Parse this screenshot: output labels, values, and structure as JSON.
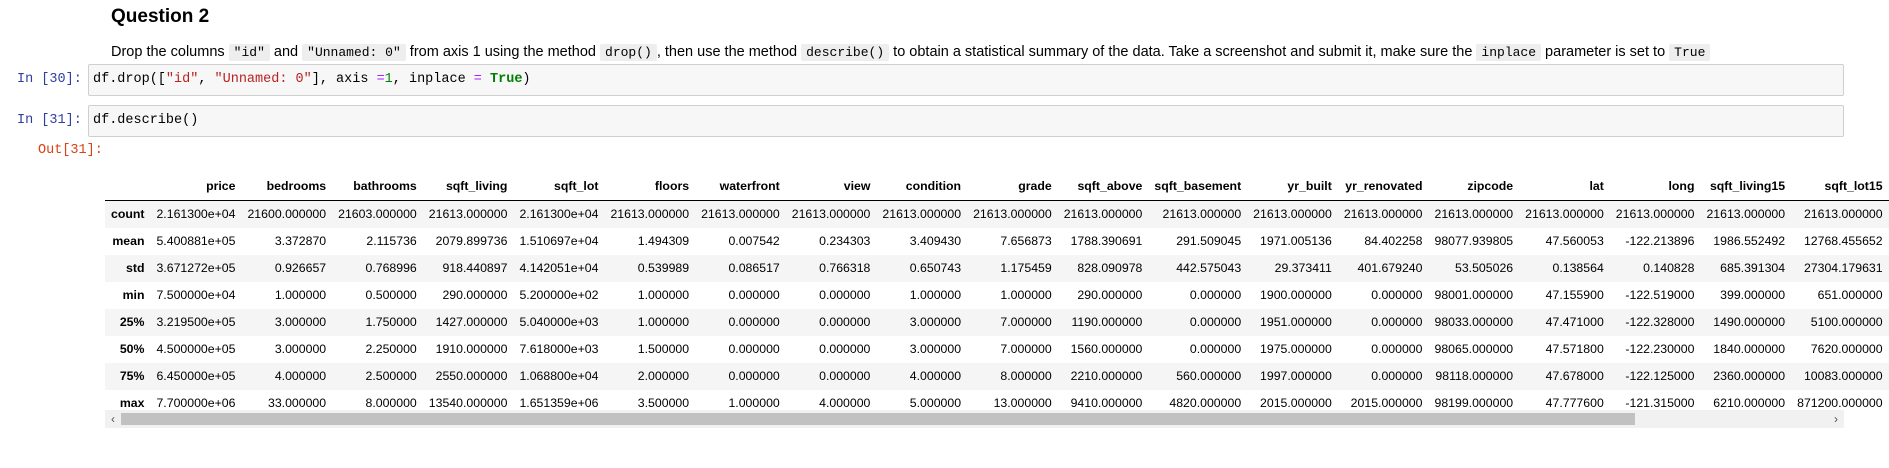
{
  "markdown": {
    "heading": "Question 2",
    "instruction": [
      {
        "t": "Drop the columns "
      },
      {
        "c": "\"id\""
      },
      {
        "t": " and "
      },
      {
        "c": "\"Unnamed: 0\""
      },
      {
        "t": " from axis 1 using the method "
      },
      {
        "c": "drop()"
      },
      {
        "t": ", then use the method "
      },
      {
        "c": "describe()"
      },
      {
        "t": " to obtain a statistical summary of the data. Take a screenshot and submit it, make sure the "
      },
      {
        "c": "inplace"
      },
      {
        "t": " parameter is set to "
      },
      {
        "c": "True"
      }
    ]
  },
  "cells": [
    {
      "prompt": "In [30]:",
      "code": [
        {
          "k": "p",
          "t": "df.drop(["
        },
        {
          "k": "s",
          "t": "\"id\""
        },
        {
          "k": "p",
          "t": ", "
        },
        {
          "k": "s",
          "t": "\"Unnamed: 0\""
        },
        {
          "k": "p",
          "t": "], axis "
        },
        {
          "k": "op",
          "t": "="
        },
        {
          "k": "n",
          "t": "1"
        },
        {
          "k": "p",
          "t": ", inplace "
        },
        {
          "k": "op",
          "t": "="
        },
        {
          "k": "p",
          "t": " "
        },
        {
          "k": "kw",
          "t": "True"
        },
        {
          "k": "p",
          "t": ")"
        }
      ]
    },
    {
      "prompt": "In [31]:",
      "code": [
        {
          "k": "p",
          "t": "df.describe()"
        }
      ]
    }
  ],
  "output": {
    "prompt": "Out[31]:",
    "columns": [
      "",
      "price",
      "bedrooms",
      "bathrooms",
      "sqft_living",
      "sqft_lot",
      "floors",
      "waterfront",
      "view",
      "condition",
      "grade",
      "sqft_above",
      "sqft_basement",
      "yr_built",
      "yr_renovated",
      "zipcode",
      "lat",
      "long",
      "sqft_living15",
      "sqft_lot15"
    ],
    "rows": [
      [
        "count",
        "2.161300e+04",
        "21600.000000",
        "21603.000000",
        "21613.000000",
        "2.161300e+04",
        "21613.000000",
        "21613.000000",
        "21613.000000",
        "21613.000000",
        "21613.000000",
        "21613.000000",
        "21613.000000",
        "21613.000000",
        "21613.000000",
        "21613.000000",
        "21613.000000",
        "21613.000000",
        "21613.000000",
        "21613.000000"
      ],
      [
        "mean",
        "5.400881e+05",
        "3.372870",
        "2.115736",
        "2079.899736",
        "1.510697e+04",
        "1.494309",
        "0.007542",
        "0.234303",
        "3.409430",
        "7.656873",
        "1788.390691",
        "291.509045",
        "1971.005136",
        "84.402258",
        "98077.939805",
        "47.560053",
        "-122.213896",
        "1986.552492",
        "12768.455652"
      ],
      [
        "std",
        "3.671272e+05",
        "0.926657",
        "0.768996",
        "918.440897",
        "4.142051e+04",
        "0.539989",
        "0.086517",
        "0.766318",
        "0.650743",
        "1.175459",
        "828.090978",
        "442.575043",
        "29.373411",
        "401.679240",
        "53.505026",
        "0.138564",
        "0.140828",
        "685.391304",
        "27304.179631"
      ],
      [
        "min",
        "7.500000e+04",
        "1.000000",
        "0.500000",
        "290.000000",
        "5.200000e+02",
        "1.000000",
        "0.000000",
        "0.000000",
        "1.000000",
        "1.000000",
        "290.000000",
        "0.000000",
        "1900.000000",
        "0.000000",
        "98001.000000",
        "47.155900",
        "-122.519000",
        "399.000000",
        "651.000000"
      ],
      [
        "25%",
        "3.219500e+05",
        "3.000000",
        "1.750000",
        "1427.000000",
        "5.040000e+03",
        "1.000000",
        "0.000000",
        "0.000000",
        "3.000000",
        "7.000000",
        "1190.000000",
        "0.000000",
        "1951.000000",
        "0.000000",
        "98033.000000",
        "47.471000",
        "-122.328000",
        "1490.000000",
        "5100.000000"
      ],
      [
        "50%",
        "4.500000e+05",
        "3.000000",
        "2.250000",
        "1910.000000",
        "7.618000e+03",
        "1.500000",
        "0.000000",
        "0.000000",
        "3.000000",
        "7.000000",
        "1560.000000",
        "0.000000",
        "1975.000000",
        "0.000000",
        "98065.000000",
        "47.571800",
        "-122.230000",
        "1840.000000",
        "7620.000000"
      ],
      [
        "75%",
        "6.450000e+05",
        "4.000000",
        "2.500000",
        "2550.000000",
        "1.068800e+04",
        "2.000000",
        "0.000000",
        "0.000000",
        "4.000000",
        "8.000000",
        "2210.000000",
        "560.000000",
        "1997.000000",
        "0.000000",
        "98118.000000",
        "47.678000",
        "-122.125000",
        "2360.000000",
        "10083.000000"
      ],
      [
        "max",
        "7.700000e+06",
        "33.000000",
        "8.000000",
        "13540.000000",
        "1.651359e+06",
        "3.500000",
        "1.000000",
        "4.000000",
        "5.000000",
        "13.000000",
        "9410.000000",
        "4820.000000",
        "2015.000000",
        "2015.000000",
        "98199.000000",
        "47.777600",
        "-121.315000",
        "6210.000000",
        "871200.000000"
      ]
    ]
  },
  "scrollbar": {
    "left_arrow": "‹",
    "right_arrow": "›"
  }
}
